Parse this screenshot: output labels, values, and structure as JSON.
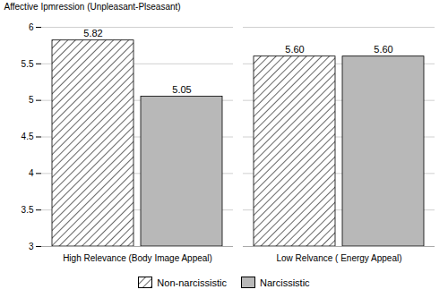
{
  "chart_data": {
    "type": "bar",
    "categories": [
      "High Relevance (Body Image Appeal)",
      "Low Relvance ( Energy Appeal)"
    ],
    "series": [
      {
        "name": "Non-narcissistic",
        "color": "#ffffff",
        "values": [
          5.82,
          5.6
        ],
        "value_labels": [
          "5.82",
          "5.60"
        ]
      },
      {
        "name": "Narcissistic",
        "color": "#b8b8b8",
        "values": [
          5.05,
          5.6
        ],
        "value_labels": [
          "5.05",
          "5.60"
        ]
      }
    ],
    "ylabel": "Affective Ipmression (Unpleasant-Plseasant)",
    "ylim": [
      3,
      6
    ],
    "yticks": [
      3,
      3.5,
      4,
      4.5,
      5,
      5.5,
      6
    ],
    "grid": true,
    "legend": "bottom",
    "data_labels": true
  }
}
